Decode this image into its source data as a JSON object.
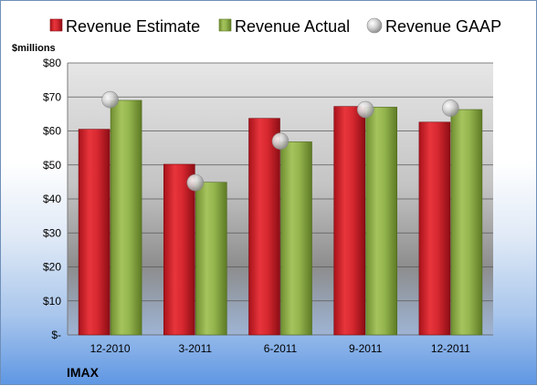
{
  "chart_data": {
    "type": "bar",
    "title": "",
    "company": "IMAX",
    "ylabel": "$millions",
    "categories": [
      "12-2010",
      "3-2011",
      "6-2011",
      "9-2011",
      "12-2011"
    ],
    "ylim": [
      0,
      80
    ],
    "yticks": [
      0,
      10,
      20,
      30,
      40,
      50,
      60,
      70,
      80
    ],
    "ytick_labels": [
      "$-",
      "$10",
      "$20",
      "$30",
      "$40",
      "$50",
      "$60",
      "$70",
      "$80"
    ],
    "grid": true,
    "legend_position": "top",
    "series": [
      {
        "name": "Revenue Estimate",
        "kind": "bar",
        "color": "#cc1f26",
        "values": [
          60.5,
          50.2,
          63.7,
          67.2,
          62.6
        ]
      },
      {
        "name": "Revenue Actual",
        "kind": "bar",
        "color": "#8fb04c",
        "values": [
          69.0,
          44.9,
          56.8,
          67.0,
          66.3
        ]
      },
      {
        "name": "Revenue GAAP",
        "kind": "marker",
        "color": "#c8c8c8",
        "values": [
          69.2,
          44.8,
          57.0,
          66.3,
          66.7
        ]
      }
    ]
  }
}
